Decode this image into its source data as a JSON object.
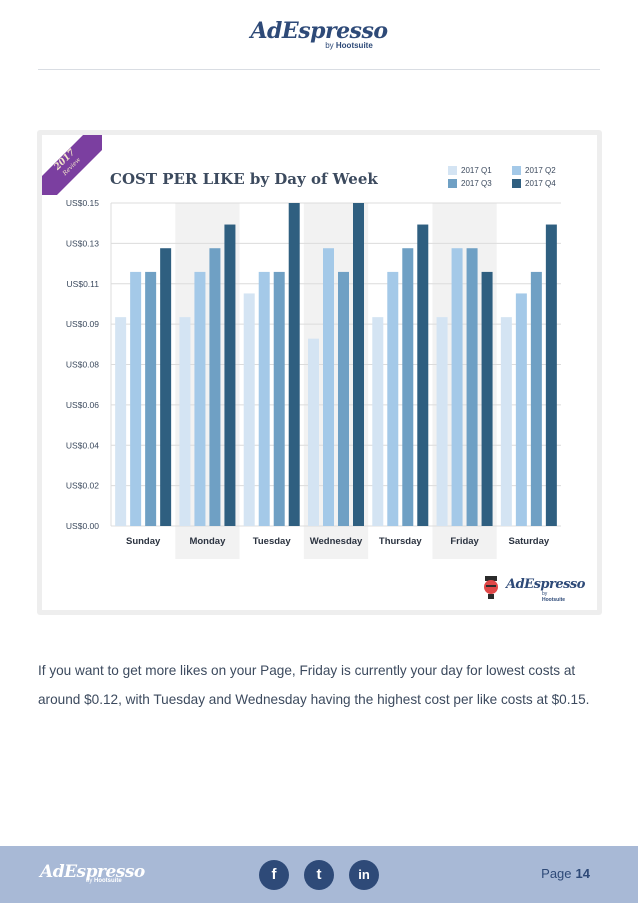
{
  "brand": {
    "name": "AdEspresso",
    "by_prefix": "by",
    "by_name": "Hootsuite"
  },
  "ribbon": {
    "year": "2017",
    "word": "Review"
  },
  "chart_data": {
    "type": "bar",
    "title": "COST PER LIKE by Day of Week",
    "categories": [
      "Sunday",
      "Monday",
      "Tuesday",
      "Wednesday",
      "Thursday",
      "Friday",
      "Saturday"
    ],
    "series": [
      {
        "name": "2017 Q1",
        "color": "#d4e4f3",
        "values": [
          0.097,
          0.097,
          0.108,
          0.087,
          0.097,
          0.097,
          0.097
        ]
      },
      {
        "name": "2017 Q2",
        "color": "#a4c9e8",
        "values": [
          0.118,
          0.118,
          0.118,
          0.129,
          0.118,
          0.129,
          0.108
        ]
      },
      {
        "name": "2017 Q3",
        "color": "#6fa0c4",
        "values": [
          0.118,
          0.129,
          0.118,
          0.118,
          0.129,
          0.129,
          0.118
        ]
      },
      {
        "name": "2017 Q4",
        "color": "#2f5f80",
        "values": [
          0.129,
          0.14,
          0.15,
          0.15,
          0.14,
          0.118,
          0.14
        ]
      }
    ],
    "yticks": [
      "US$0.00",
      "US$0.02",
      "US$0.04",
      "US$0.06",
      "US$0.08",
      "US$0.09",
      "US$0.11",
      "US$0.13",
      "US$0.15"
    ],
    "ylim": [
      0,
      0.15
    ],
    "shaded_categories": [
      "Monday",
      "Wednesday",
      "Friday"
    ],
    "xlabel": "",
    "ylabel": ""
  },
  "body_text": "If you want to get more likes on your Page, Friday is currently your day for lowest costs at around $0.12, with Tuesday and Wednesday having the highest cost per like costs at $0.15.",
  "footer": {
    "page_label": "Page",
    "page_number": "14",
    "social": [
      "f",
      "t",
      "in"
    ]
  }
}
